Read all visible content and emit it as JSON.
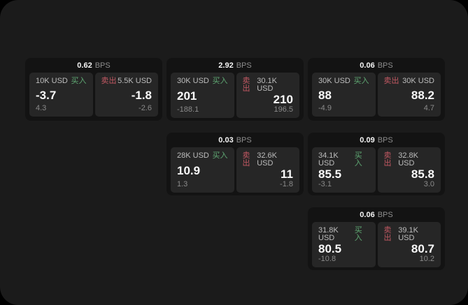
{
  "labels": {
    "buy": "买入",
    "sell": "卖出",
    "bps_unit": "BPS"
  },
  "colors": {
    "page_bg": "#000000",
    "container_bg": "#1b1b1b",
    "card_bg": "#131313",
    "panel_bg": "#262626",
    "buy_green": "#5fa873",
    "sell_red": "#c25862",
    "value_white": "#fafafa",
    "muted_gray": "#8a8a8a"
  },
  "cards": [
    {
      "bps": "0.62",
      "buy": {
        "amount": "10K USD",
        "value": "-3.7",
        "delta": "4.3"
      },
      "sell": {
        "amount": "5.5K USD",
        "value": "-1.8",
        "delta": "-2.6"
      }
    },
    {
      "bps": "2.92",
      "buy": {
        "amount": "30K USD",
        "value": "201",
        "delta": "-188.1"
      },
      "sell": {
        "amount": "30.1K USD",
        "value": "210",
        "delta": "196.5"
      }
    },
    {
      "bps": "0.06",
      "buy": {
        "amount": "30K USD",
        "value": "88",
        "delta": "-4.9"
      },
      "sell": {
        "amount": "30K USD",
        "value": "88.2",
        "delta": "4.7"
      }
    },
    {
      "bps": "0.03",
      "buy": {
        "amount": "28K USD",
        "value": "10.9",
        "delta": "1.3"
      },
      "sell": {
        "amount": "32.6K USD",
        "value": "11",
        "delta": "-1.8"
      }
    },
    {
      "bps": "0.09",
      "buy": {
        "amount": "34.1K USD",
        "value": "85.5",
        "delta": "-3.1"
      },
      "sell": {
        "amount": "32.8K USD",
        "value": "85.8",
        "delta": "3.0"
      }
    },
    {
      "bps": "0.06",
      "buy": {
        "amount": "31.8K USD",
        "value": "80.5",
        "delta": "-10.8"
      },
      "sell": {
        "amount": "39.1K USD",
        "value": "80.7",
        "delta": "10.2"
      }
    }
  ]
}
